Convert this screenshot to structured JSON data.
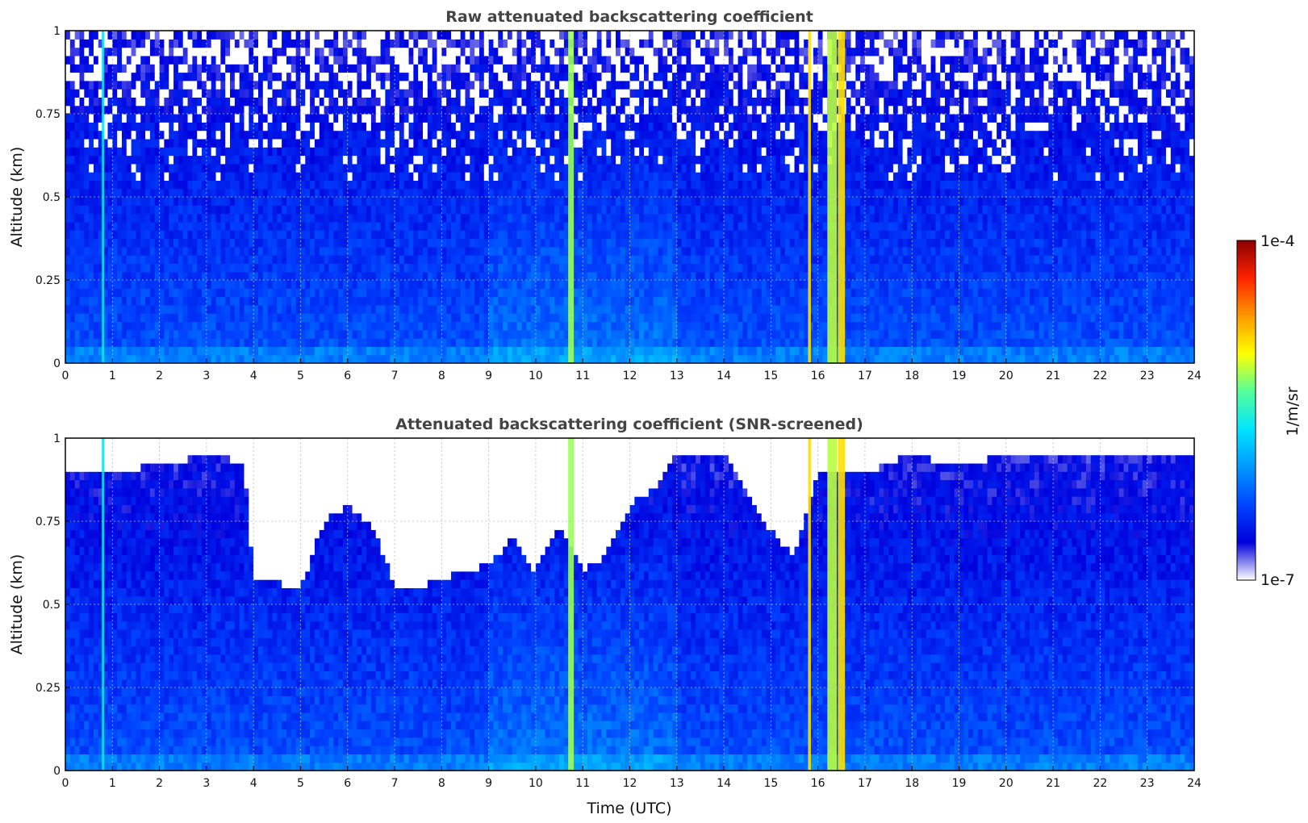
{
  "colormap": [
    "#ffffff",
    "#0000dd",
    "#0044ff",
    "#0099ff",
    "#00e5ff",
    "#55ff99",
    "#ffff00",
    "#ff9900",
    "#ff2200",
    "#8b0000"
  ],
  "chart_data": [
    {
      "type": "heatmap",
      "title": "Raw attenuated backscattering coefficient",
      "xlabel": "",
      "ylabel": "Altitude (km)",
      "xlim": [
        0,
        24
      ],
      "ylim": [
        0,
        1
      ],
      "x_ticks": [
        "0",
        "1",
        "2",
        "3",
        "4",
        "5",
        "6",
        "7",
        "8",
        "9",
        "10",
        "11",
        "12",
        "13",
        "14",
        "15",
        "16",
        "17",
        "18",
        "19",
        "20",
        "21",
        "22",
        "23",
        "24"
      ],
      "y_ticks": [
        "0",
        "0.25",
        "0.5",
        "0.75",
        "1"
      ],
      "grid": true,
      "screened": false
    },
    {
      "type": "heatmap",
      "title": "Attenuated backscattering coefficient (SNR-screened)",
      "xlabel": "Time (UTC)",
      "ylabel": "Altitude (km)",
      "xlim": [
        0,
        24
      ],
      "ylim": [
        0,
        1
      ],
      "x_ticks": [
        "0",
        "1",
        "2",
        "3",
        "4",
        "5",
        "6",
        "7",
        "8",
        "9",
        "10",
        "11",
        "12",
        "13",
        "14",
        "15",
        "16",
        "17",
        "18",
        "19",
        "20",
        "21",
        "22",
        "23",
        "24"
      ],
      "y_ticks": [
        "0",
        "0.25",
        "0.5",
        "0.75",
        "1"
      ],
      "grid": true,
      "screened": true
    }
  ],
  "colorbar": {
    "label": "1/m/sr",
    "max_label": "1e-4",
    "min_label": "1e-7",
    "scale": "log"
  },
  "screened_top_profile_km": [
    [
      0,
      0.9
    ],
    [
      1,
      0.9
    ],
    [
      2,
      0.92
    ],
    [
      3,
      0.95
    ],
    [
      3.8,
      0.93
    ],
    [
      4,
      0.58
    ],
    [
      5,
      0.55
    ],
    [
      5.5,
      0.75
    ],
    [
      6,
      0.8
    ],
    [
      6.6,
      0.72
    ],
    [
      7,
      0.55
    ],
    [
      7.5,
      0.55
    ],
    [
      8,
      0.58
    ],
    [
      8.5,
      0.6
    ],
    [
      9,
      0.62
    ],
    [
      9.5,
      0.7
    ],
    [
      10,
      0.6
    ],
    [
      10.5,
      0.75
    ],
    [
      11,
      0.6
    ],
    [
      11.5,
      0.65
    ],
    [
      12,
      0.8
    ],
    [
      12.5,
      0.85
    ],
    [
      13,
      0.95
    ],
    [
      14,
      0.95
    ],
    [
      15,
      0.72
    ],
    [
      15.5,
      0.65
    ],
    [
      16,
      0.9
    ],
    [
      17,
      0.9
    ],
    [
      18,
      0.95
    ],
    [
      19,
      0.92
    ],
    [
      20,
      0.95
    ],
    [
      21,
      0.95
    ],
    [
      22,
      0.95
    ],
    [
      23,
      0.95
    ],
    [
      24,
      0.95
    ]
  ],
  "bright_events": [
    {
      "t": 0.8,
      "width": 0.05,
      "level": 0.45
    },
    {
      "t": 10.75,
      "width": 0.12,
      "level": 0.6
    },
    {
      "t": 15.82,
      "width": 0.06,
      "level": 0.7
    },
    {
      "t": 16.3,
      "width": 0.2,
      "level": 0.62
    },
    {
      "t": 16.5,
      "width": 0.15,
      "level": 0.7
    }
  ]
}
